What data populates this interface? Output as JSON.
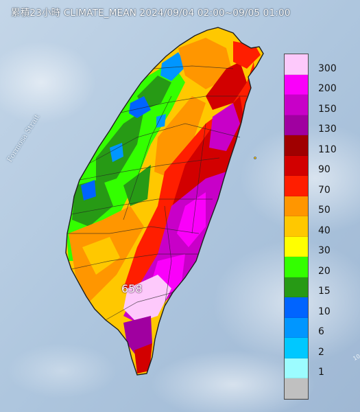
{
  "map": {
    "title": "累積23小時 CLIMATE_MEAN 2024/09/04 02:00~09/05 01:00",
    "sea_label": "Formosa Strait",
    "max_value_label": "658",
    "corner_mark": "10"
  },
  "legend": {
    "items": [
      {
        "label": "300",
        "color": "#fdc9fb"
      },
      {
        "label": "200",
        "color": "#fa00fa"
      },
      {
        "label": "150",
        "color": "#c800c8"
      },
      {
        "label": "130",
        "color": "#a000a0"
      },
      {
        "label": "110",
        "color": "#a00000"
      },
      {
        "label": "90",
        "color": "#d20000"
      },
      {
        "label": "70",
        "color": "#ff1e00"
      },
      {
        "label": "50",
        "color": "#ff9600"
      },
      {
        "label": "40",
        "color": "#ffc800"
      },
      {
        "label": "30",
        "color": "#ffff00"
      },
      {
        "label": "20",
        "color": "#33ff00"
      },
      {
        "label": "15",
        "color": "#279a15"
      },
      {
        "label": "10",
        "color": "#0064ff"
      },
      {
        "label": "6",
        "color": "#0096ff"
      },
      {
        "label": "2",
        "color": "#00c8ff"
      },
      {
        "label": "1",
        "color": "#9cfcff"
      },
      {
        "label": "",
        "color": "#c0c0c0"
      }
    ]
  }
}
